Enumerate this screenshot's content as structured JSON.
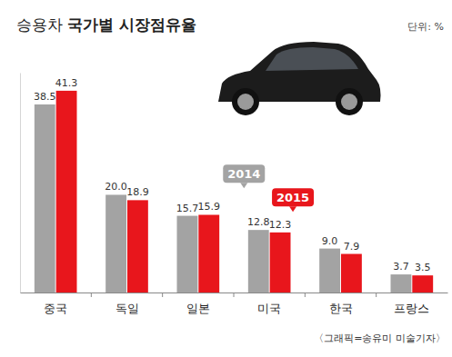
{
  "chart_data": {
    "type": "bar",
    "title": "승용차 국가별 시장점유율",
    "unit": "단위: %",
    "source": "〈그래픽=송유미 미술기자〉",
    "categories": [
      "중국",
      "독일",
      "일본",
      "미국",
      "한국",
      "프랑스"
    ],
    "series": [
      {
        "name": "2014",
        "color": "#a3a3a3",
        "values": [
          38.5,
          20,
          15.7,
          12.8,
          9,
          3.7
        ],
        "value_labels": [
          "38.5",
          "20.0",
          "15.7",
          "12.8",
          "9.0",
          "3.7"
        ]
      },
      {
        "name": "2015",
        "color": "#e8161c",
        "values": [
          41.3,
          18.9,
          15.9,
          12.3,
          7.9,
          3.5
        ],
        "value_labels": [
          "41.3",
          "18.9",
          "15.9",
          "12.3",
          "7.9",
          "3.5"
        ]
      }
    ],
    "ylim": [
      0,
      45
    ],
    "data_labels": true,
    "tick_labels": "x"
  }
}
